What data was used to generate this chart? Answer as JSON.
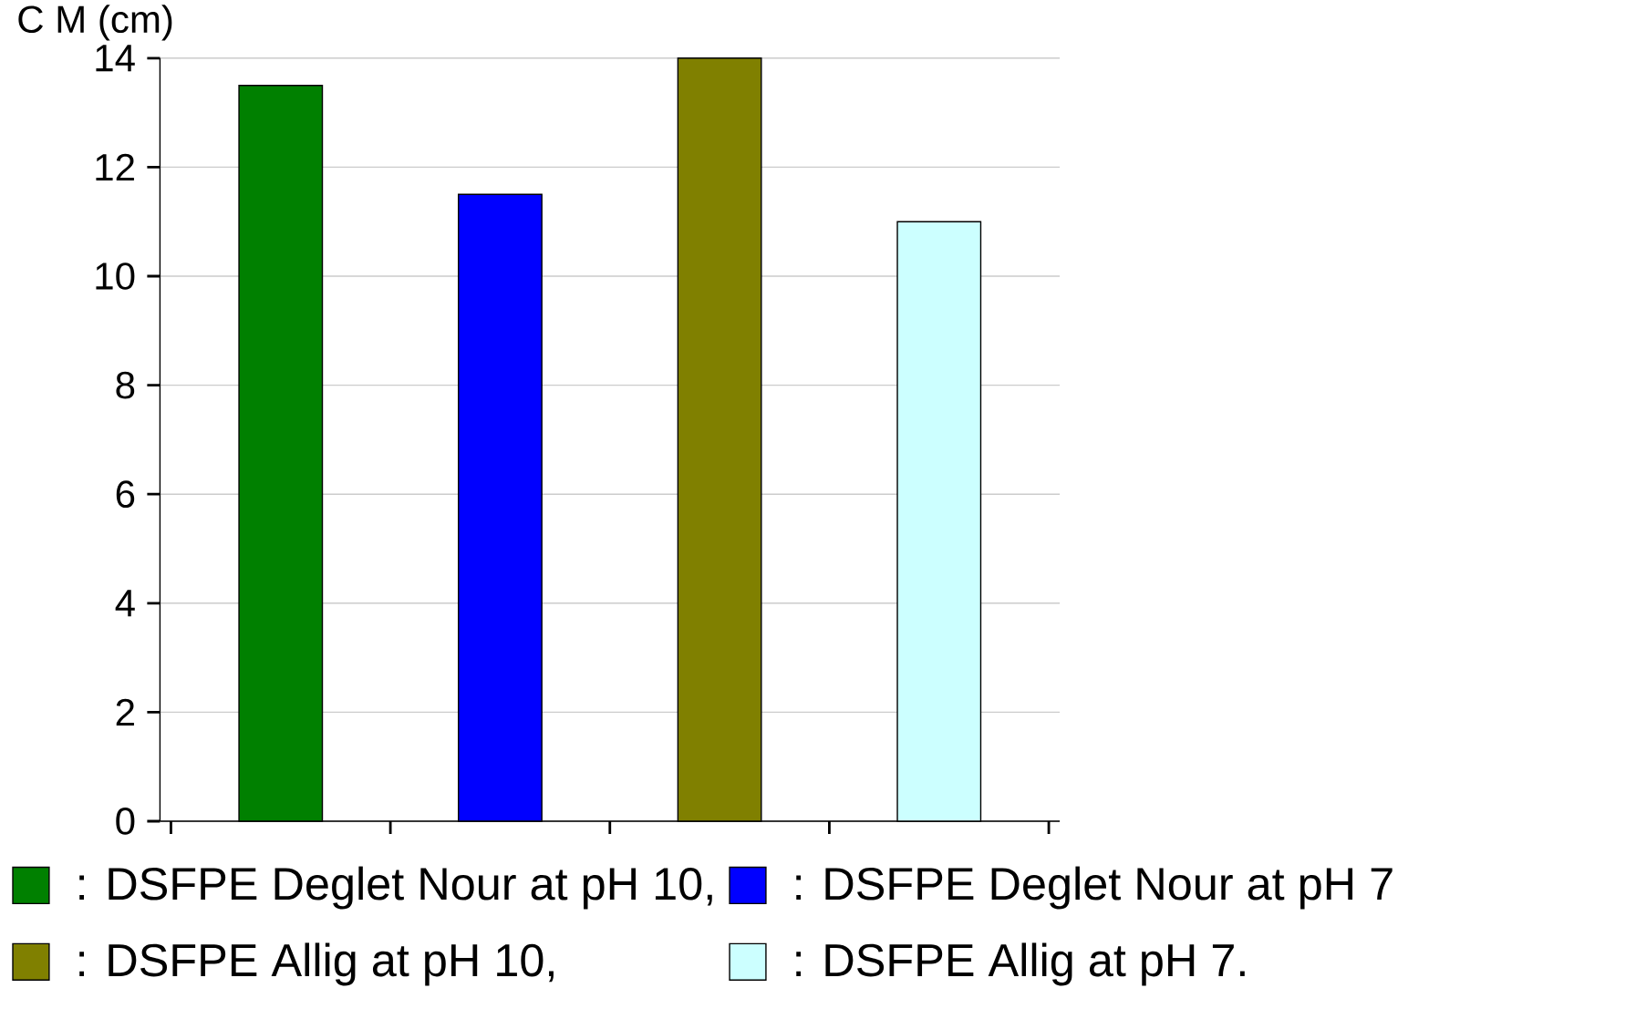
{
  "chart_data": {
    "type": "bar",
    "ylabel": "C M (cm)",
    "categories": [
      null,
      null,
      null,
      null
    ],
    "series": [
      {
        "name": ": DSFPE Deglet Nour at pH 10,",
        "color": "#008000",
        "values": [
          13.5,
          null,
          null,
          null
        ]
      },
      {
        "name": ": DSFPE Deglet Nour at pH 7",
        "color": "#0000ff",
        "values": [
          null,
          11.5,
          null,
          null
        ]
      },
      {
        "name": ": DSFPE Allig at pH 10,",
        "color": "#808000",
        "values": [
          null,
          null,
          14.0,
          null
        ]
      },
      {
        "name": ": DSFPE Allig at pH 7.",
        "color": "#ccffff",
        "values": [
          null,
          null,
          null,
          11.0
        ]
      }
    ],
    "ylim": [
      0,
      14
    ],
    "yticks": [
      0,
      2,
      4,
      6,
      8,
      10,
      12,
      14
    ],
    "grid": "y",
    "legend": "bottom"
  }
}
